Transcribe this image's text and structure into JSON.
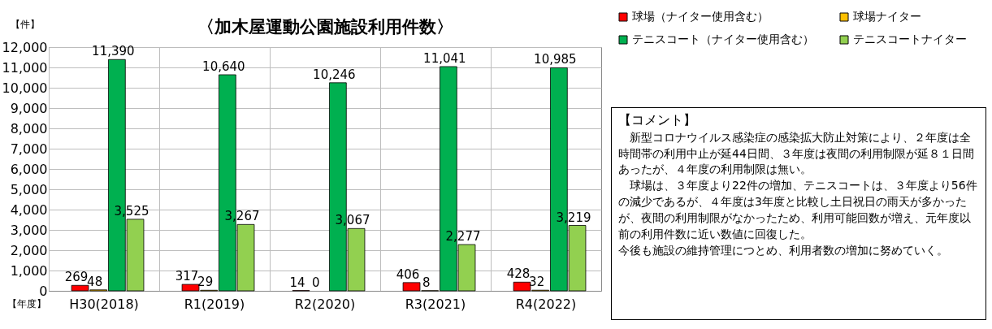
{
  "chart_data": {
    "type": "bar",
    "title": "〈加木屋運動公園施設利用件数〉",
    "xlabel": "【年度】",
    "ylabel": "【件】",
    "categories": [
      "H30(2018)",
      "R1(2019)",
      "R2(2020)",
      "R3(2021)",
      "R4(2022)"
    ],
    "series": [
      {
        "name": "球場（ナイター使用含む）",
        "color": "#ff0000",
        "values": [
          269,
          317,
          14,
          406,
          428
        ],
        "value_labels": [
          "269",
          "317",
          "14",
          "406",
          "428"
        ]
      },
      {
        "name": "球場ナイター",
        "color": "#ffc000",
        "values": [
          48,
          29,
          0,
          8,
          32
        ],
        "value_labels": [
          "48",
          "29",
          "0",
          "8",
          "32"
        ]
      },
      {
        "name": "テニスコート（ナイター使用含む）",
        "color": "#00b050",
        "values": [
          11390,
          10640,
          10246,
          11041,
          10985
        ],
        "value_labels": [
          "11,390",
          "10,640",
          "10,246",
          "11,041",
          "10,985"
        ]
      },
      {
        "name": "テニスコートナイター",
        "color": "#92d050",
        "values": [
          3525,
          3267,
          3067,
          2277,
          3219
        ],
        "value_labels": [
          "3,525",
          "3,267",
          "3,067",
          "2,277",
          "3,219"
        ]
      }
    ],
    "ylim": [
      0,
      12000
    ],
    "yticks": [
      {
        "value": 0,
        "label": "0"
      },
      {
        "value": 1000,
        "label": "1,000"
      },
      {
        "value": 2000,
        "label": "2,000"
      },
      {
        "value": 3000,
        "label": "3,000"
      },
      {
        "value": 4000,
        "label": "4,000"
      },
      {
        "value": 5000,
        "label": "5,000"
      },
      {
        "value": 6000,
        "label": "6,000"
      },
      {
        "value": 7000,
        "label": "7,000"
      },
      {
        "value": 8000,
        "label": "8,000"
      },
      {
        "value": 9000,
        "label": "9,000"
      },
      {
        "value": 10000,
        "label": "10,000"
      },
      {
        "value": 11000,
        "label": "11,000"
      },
      {
        "value": 12000,
        "label": "12,000"
      }
    ],
    "grid": true,
    "legend": "right",
    "annotations": [
      "【コメント】",
      "　新型コロナウイルス感染症の感染拡大防止対策により、２年度は全時間帯の利用中止が延44日間、３年度は夜間の利用制限が延８１日間あったが、４年度の利用制限は無い。",
      "　球場は、３年度より22件の増加、テニスコートは、３年度より56件の減少であるが、４年度は3年度と比較し土日祝日の雨天が多かったが、夜間の利用制限がなかったため、利用可能回数が増え、元年度以前の利用件数に近い数値に回復した。",
      "今後も施設の維持管理につとめ、利用者数の増加に努めていく。"
    ]
  }
}
